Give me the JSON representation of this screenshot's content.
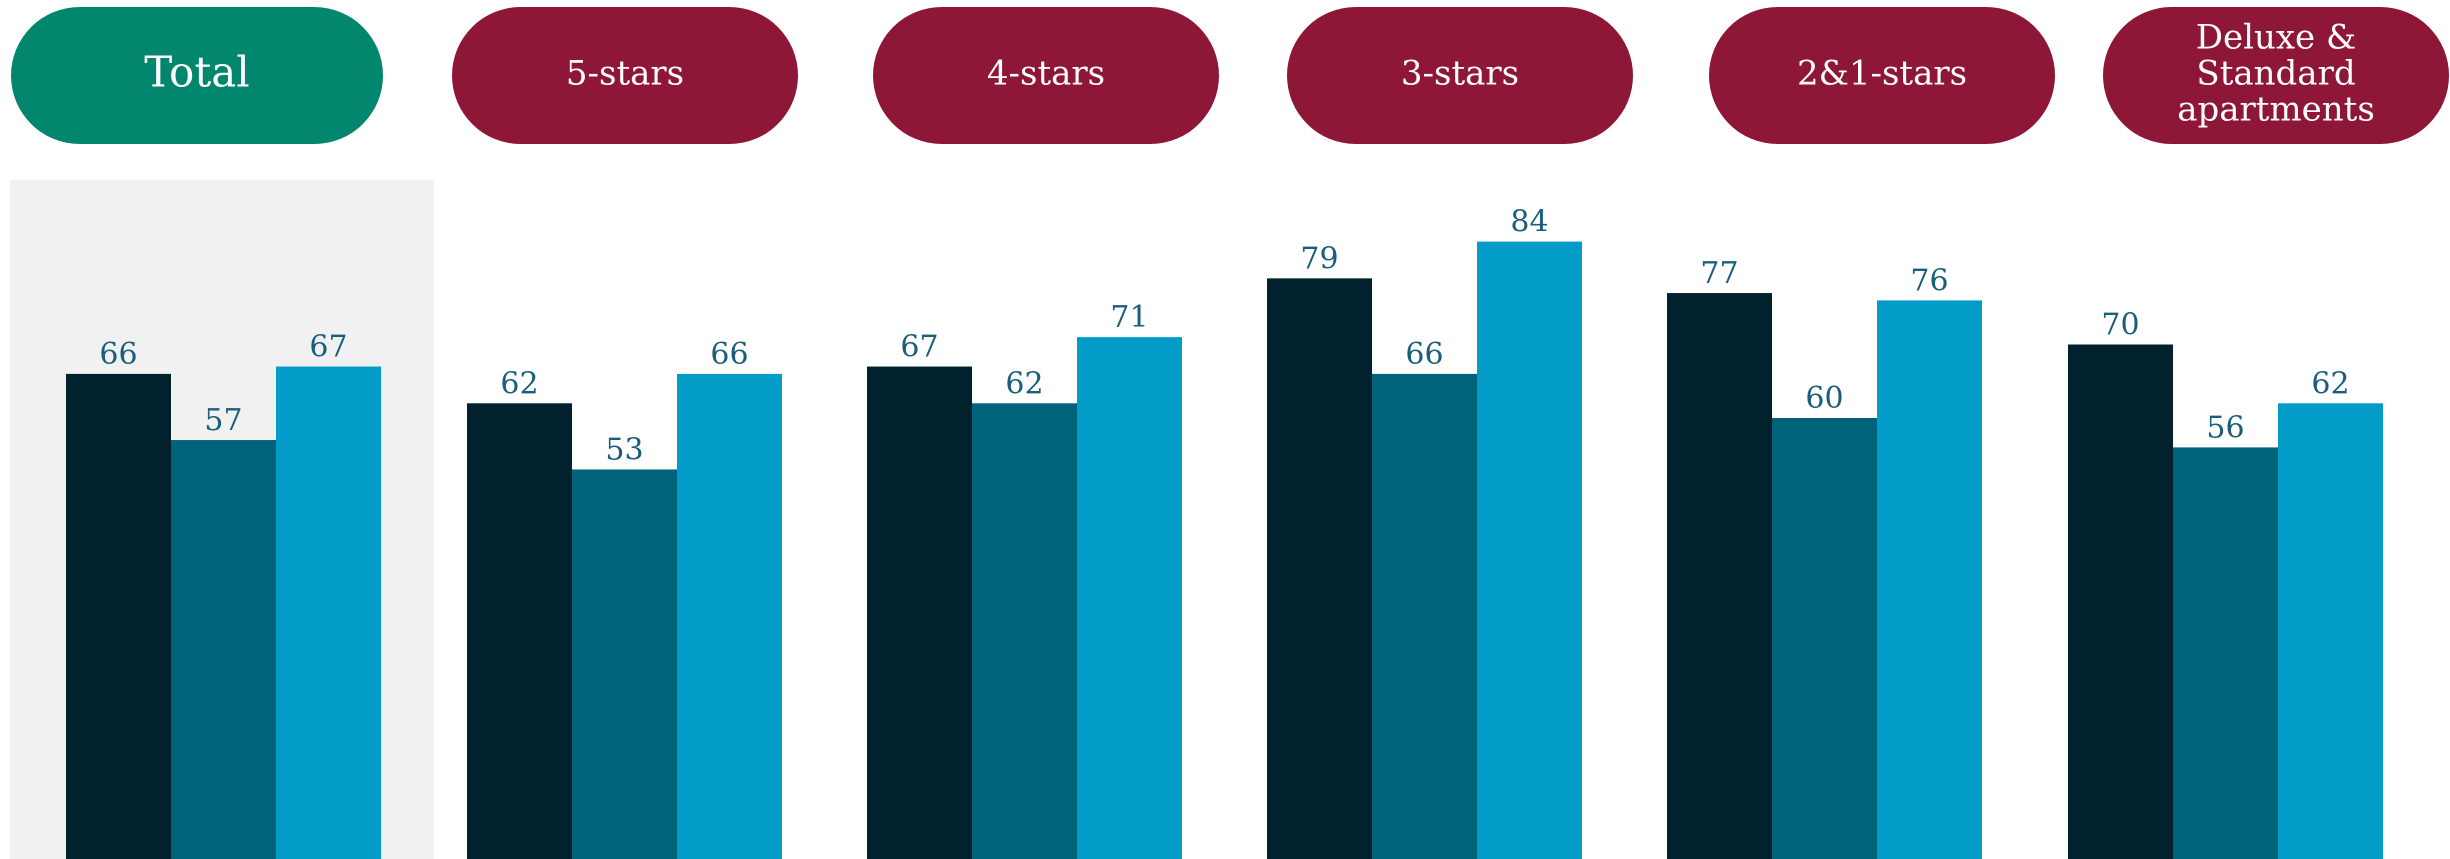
{
  "colors": {
    "total_pill": "#02876e",
    "category_pill": "#8e1738",
    "total_bg": "#f1f1f1",
    "series": [
      "#01222d",
      "#00627b",
      "#039cc8"
    ],
    "value_label": "#1b5e7a"
  },
  "chart_data": {
    "type": "bar",
    "categories": [
      "Total",
      "5-stars",
      "4-stars",
      "3-stars",
      "2&1-stars",
      "Deluxe & Standard apartments"
    ],
    "category_lines": [
      [
        "Total"
      ],
      [
        "5-stars"
      ],
      [
        "4-stars"
      ],
      [
        "3-stars"
      ],
      [
        "2&1-stars"
      ],
      [
        "Deluxe &",
        "Standard",
        "apartments"
      ]
    ],
    "series": [
      {
        "values": [
          66,
          62,
          67,
          79,
          77,
          70
        ]
      },
      {
        "values": [
          57,
          53,
          62,
          66,
          60,
          56
        ]
      },
      {
        "values": [
          67,
          66,
          71,
          84,
          76,
          62
        ]
      }
    ],
    "title": "",
    "xlabel": "",
    "ylabel": "",
    "ylim": [
      0,
      120
    ],
    "data_labels": true,
    "grid": false,
    "highlighted_category": "Total"
  }
}
